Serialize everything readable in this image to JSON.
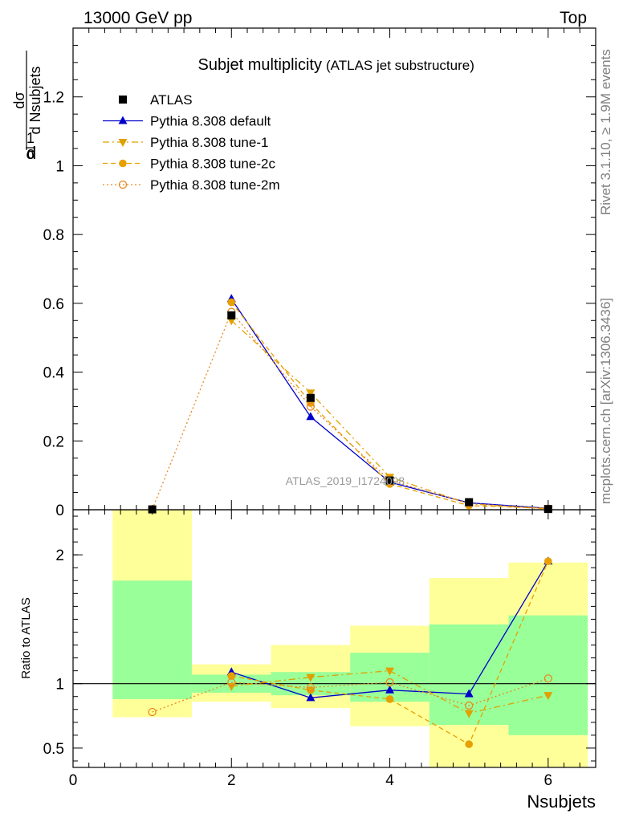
{
  "header": {
    "left": "13000 GeV pp",
    "right": "Top"
  },
  "side": {
    "rivet": "Rivet 3.1.10, ≥ 1.9M events",
    "mcplots": "mcplots.cern.ch [arXiv:1306.3436]"
  },
  "chart_data": {
    "type": "line",
    "title": "Subjet multiplicity",
    "subtitle": "(ATLAS jet substructure)",
    "watermark": "ATLAS_2019_I1724098",
    "xlabel": "Nsubjets",
    "ylabel_main": "1/σ dσ/d Nsubjets",
    "ylabel_ratio": "Ratio to ATLAS",
    "xlim": [
      0,
      6.6
    ],
    "ylim_main": [
      0,
      1.4
    ],
    "ylim_ratio": [
      0.35,
      2.35
    ],
    "x_ticks": [
      "0",
      "2",
      "4",
      "6"
    ],
    "y_ticks_main": [
      "0",
      "0.2",
      "0.4",
      "0.6",
      "0.8",
      "1",
      "1.2"
    ],
    "y_ticks_ratio": [
      "0.5",
      "1",
      "2"
    ],
    "bins": [
      [
        0.5,
        1.5
      ],
      [
        1.5,
        2.5
      ],
      [
        2.5,
        3.5
      ],
      [
        3.5,
        4.5
      ],
      [
        4.5,
        5.5
      ],
      [
        5.5,
        6.5
      ]
    ],
    "x": [
      1,
      2,
      3,
      4,
      5,
      6
    ],
    "data": {
      "name": "ATLAS",
      "values": [
        0.001,
        0.565,
        0.325,
        0.085,
        0.022,
        0.002
      ],
      "band_inner": [
        [
          0.88,
          1.8
        ],
        [
          0.93,
          1.07
        ],
        [
          0.91,
          1.09
        ],
        [
          0.86,
          1.24
        ],
        [
          0.68,
          1.46
        ],
        [
          0.6,
          1.53
        ]
      ],
      "band_outer": [
        [
          0.74,
          2.35
        ],
        [
          0.86,
          1.15
        ],
        [
          0.81,
          1.3
        ],
        [
          0.67,
          1.45
        ],
        [
          0.35,
          1.82
        ],
        [
          0.35,
          1.94
        ]
      ]
    },
    "series": [
      {
        "name": "Pythia 8.308 default",
        "color": "#0000cc",
        "dash": "",
        "marker": "triangle-up",
        "values": [
          null,
          0.613,
          0.27,
          0.08,
          0.02,
          0.004
        ],
        "ratio": [
          null,
          1.09,
          0.89,
          0.95,
          0.92,
          1.95
        ]
      },
      {
        "name": "Pythia 8.308 tune-1",
        "color": "#e0a000",
        "dash": "8,4,2,4",
        "marker": "triangle-down",
        "values": [
          null,
          0.55,
          0.34,
          0.095,
          0.017,
          0.002
        ],
        "ratio": [
          null,
          0.98,
          1.05,
          1.1,
          0.77,
          0.91
        ]
      },
      {
        "name": "Pythia 8.308 tune-2c",
        "color": "#e8a000",
        "dash": "6,4",
        "marker": "circle-filled",
        "values": [
          null,
          0.603,
          0.31,
          0.075,
          0.012,
          0.004
        ],
        "ratio": [
          null,
          1.06,
          0.95,
          0.88,
          0.53,
          1.95
        ]
      },
      {
        "name": "Pythia 8.308 tune-2m",
        "color": "#e88a20",
        "dash": "2,3",
        "marker": "circle-open",
        "values": [
          0.001,
          0.575,
          0.3,
          0.085,
          0.018,
          0.003
        ],
        "ratio": [
          0.78,
          1.01,
          0.97,
          1.01,
          0.83,
          1.04
        ]
      }
    ]
  },
  "colors": {
    "band_inner": "#99ff99",
    "band_outer": "#ffff99",
    "data": "#000000"
  }
}
